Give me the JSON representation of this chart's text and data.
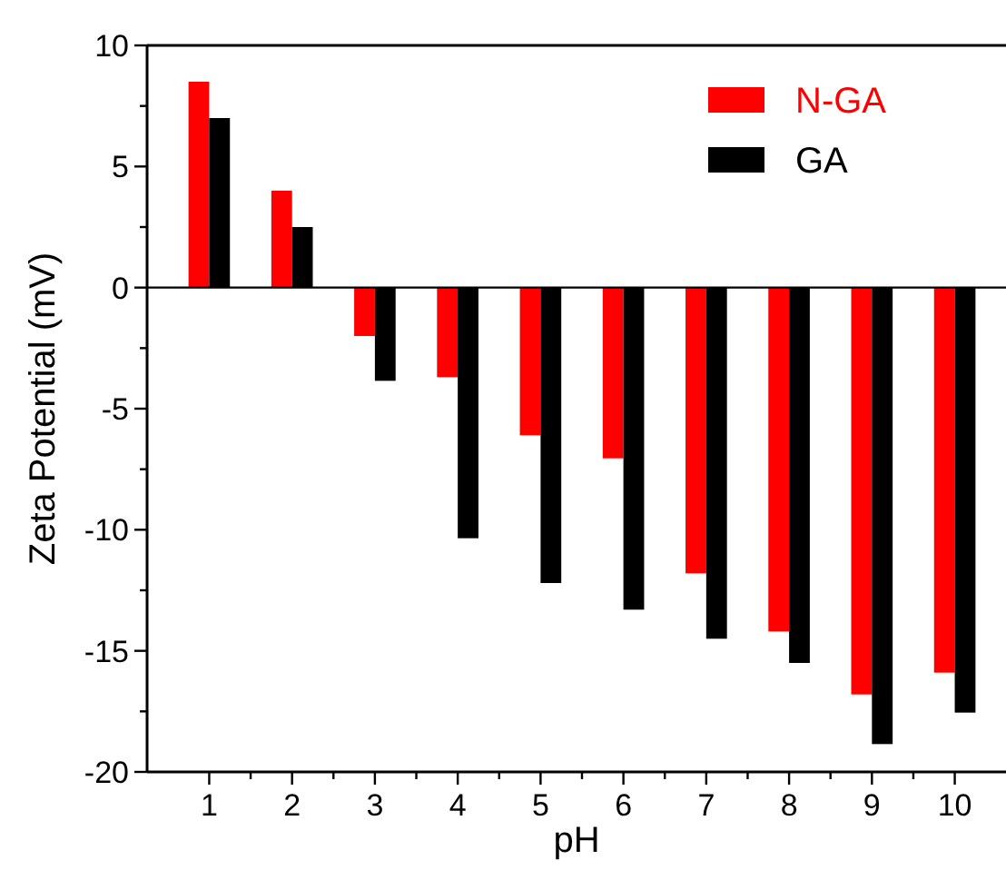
{
  "chart_data": {
    "type": "bar",
    "xlabel": "pH",
    "ylabel": "Zeta Potential (mV)",
    "categories": [
      "1",
      "2",
      "3",
      "4",
      "5",
      "6",
      "7",
      "8",
      "9",
      "10"
    ],
    "series": [
      {
        "name": "N-GA",
        "color": "#ff0000",
        "values": [
          8.5,
          4,
          -2,
          -3.7,
          -6.1,
          -7.05,
          -11.8,
          -14.2,
          -16.8,
          -15.9
        ]
      },
      {
        "name": "GA",
        "color": "#000000",
        "values": [
          7,
          2.5,
          -3.85,
          -10.35,
          -12.2,
          -13.3,
          -14.5,
          -15.5,
          -18.85,
          -17.55
        ]
      }
    ],
    "ylim": [
      -20,
      10
    ],
    "yticks": [
      -20,
      {
        "value": -17.5,
        "label": null
      },
      -15,
      {
        "value": -12.5,
        "label": null
      },
      -10,
      {
        "value": -7.5,
        "label": null
      },
      -5,
      {
        "value": -2.5,
        "label": null
      },
      0,
      {
        "value": 2.5,
        "label": null
      },
      5,
      {
        "value": 7.5,
        "label": null
      },
      10
    ],
    "legend": "top right"
  }
}
